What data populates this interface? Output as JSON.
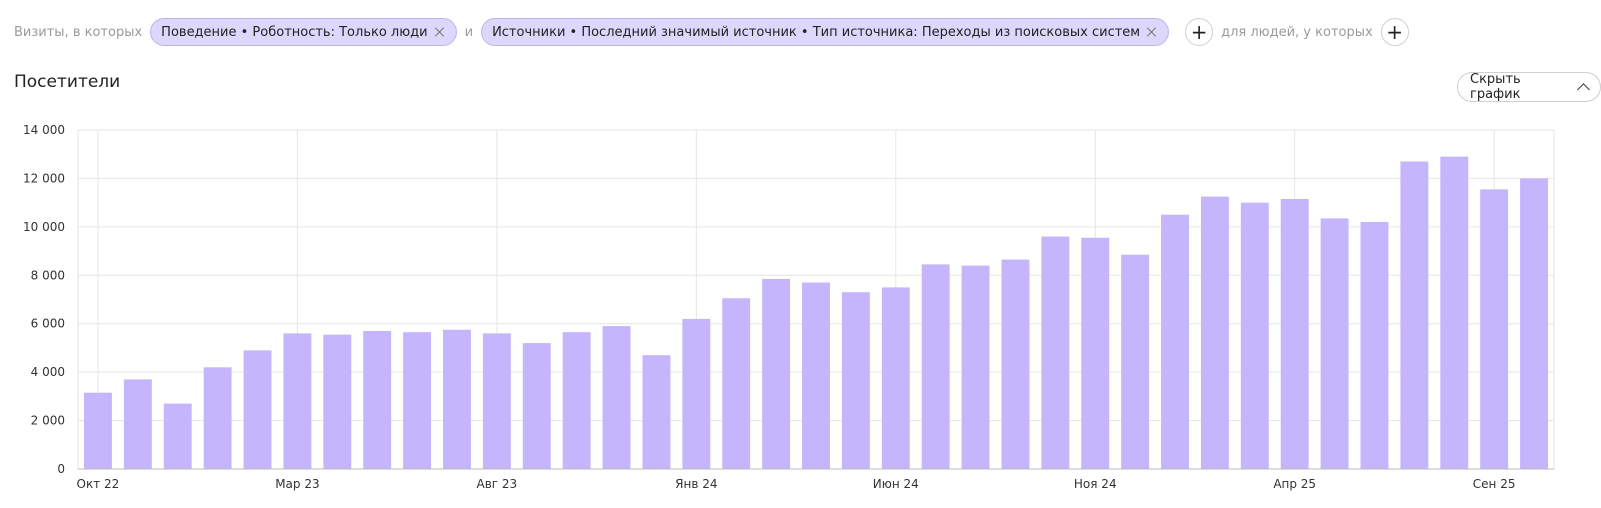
{
  "filters": {
    "visits_label": "Визиты, в которых",
    "chip1": "Поведение • Роботность: Только люди",
    "and_label": "и",
    "chip2": "Источники • Последний значимый источник • Тип источника: Переходы из поисковых систем",
    "people_label": "для людей, у которых"
  },
  "header": {
    "title": "Посетители",
    "hide_chart_label": "Скрыть график"
  },
  "colors": {
    "bar": "#c4b5fd",
    "grid": "#e6e6e6",
    "chip": "#dcd7fb"
  },
  "chart_data": {
    "type": "bar",
    "title": "Посетители",
    "ylim": [
      0,
      14000
    ],
    "yticks": [
      0,
      2000,
      4000,
      6000,
      8000,
      10000,
      12000,
      14000
    ],
    "ytick_labels": [
      "0",
      "2 000",
      "4 000",
      "6 000",
      "8 000",
      "10 000",
      "12 000",
      "14 000"
    ],
    "categories": [
      "2022-10",
      "2022-11",
      "2022-12",
      "2023-01",
      "2023-02",
      "2023-03",
      "2023-04",
      "2023-05",
      "2023-06",
      "2023-07",
      "2023-08",
      "2023-09",
      "2023-10",
      "2023-11",
      "2023-12",
      "2024-01",
      "2024-02",
      "2024-03",
      "2024-04",
      "2024-05",
      "2024-06",
      "2024-07",
      "2024-08",
      "2024-09",
      "2024-10",
      "2024-11",
      "2024-12",
      "2025-01",
      "2025-02",
      "2025-03",
      "2025-04",
      "2025-05",
      "2025-06",
      "2025-07",
      "2025-08",
      "2025-09",
      "2025-10"
    ],
    "values": [
      3150,
      3700,
      2700,
      4200,
      4900,
      5600,
      5550,
      5700,
      5650,
      5750,
      5600,
      5200,
      5650,
      5900,
      4700,
      6200,
      7050,
      7850,
      7700,
      7300,
      7500,
      8450,
      8400,
      8650,
      9600,
      9550,
      8850,
      10500,
      11250,
      11000,
      11150,
      10350,
      10200,
      12700,
      12900,
      11550,
      12000
    ],
    "x_tick_labels": [
      {
        "index": 0,
        "label": "Окт 22"
      },
      {
        "index": 5,
        "label": "Мар 23"
      },
      {
        "index": 10,
        "label": "Авг 23"
      },
      {
        "index": 15,
        "label": "Янв 24"
      },
      {
        "index": 20,
        "label": "Июн 24"
      },
      {
        "index": 25,
        "label": "Ноя 24"
      },
      {
        "index": 30,
        "label": "Апр 25"
      },
      {
        "index": 35,
        "label": "Сен 25"
      }
    ],
    "grid": true,
    "legend": "none"
  }
}
